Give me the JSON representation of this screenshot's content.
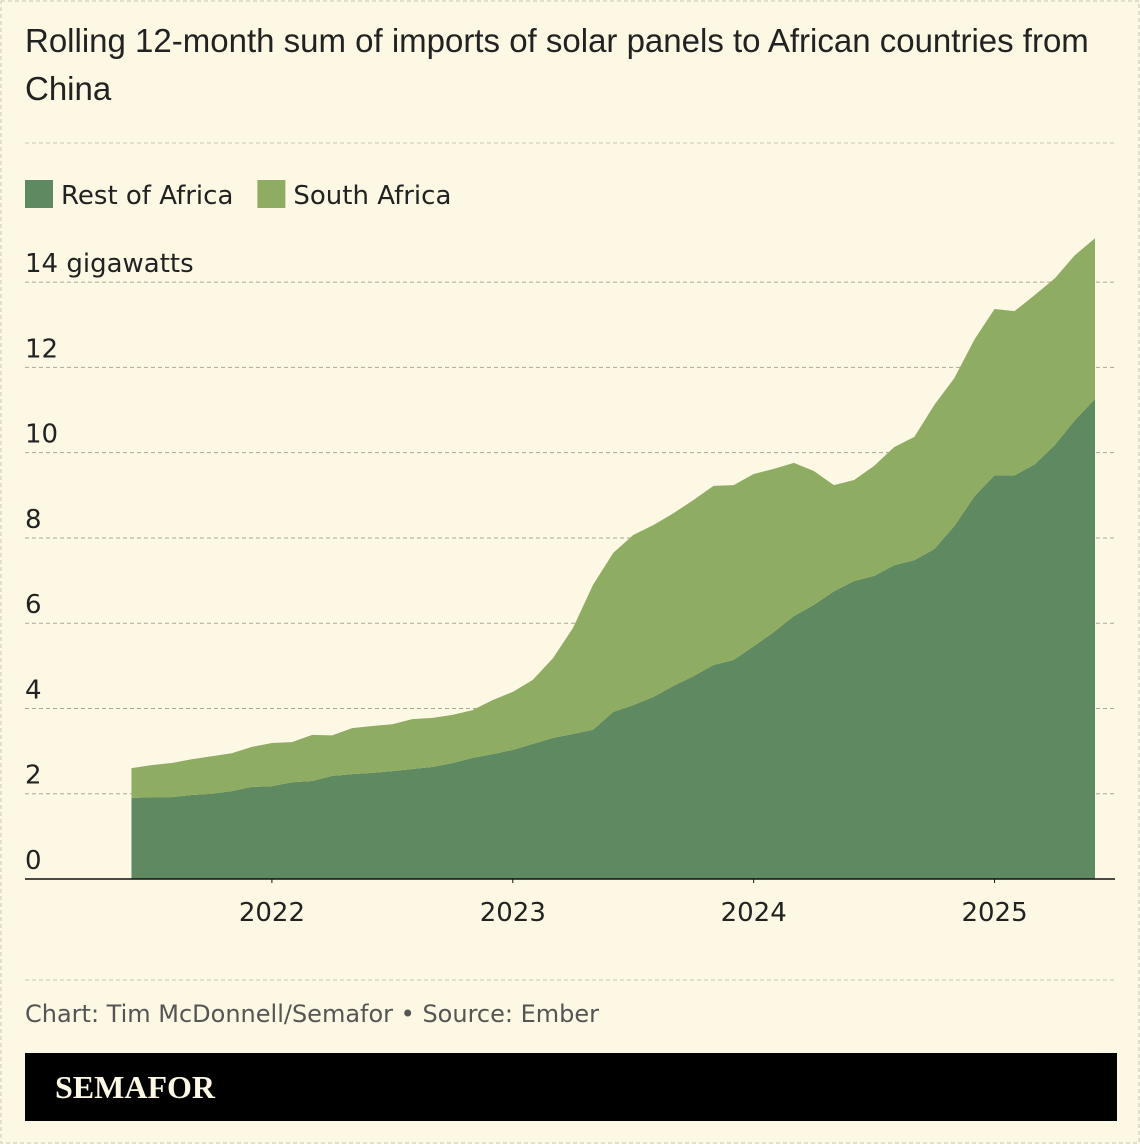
{
  "chart_data": {
    "type": "stacked-area",
    "title": "Rolling 12-month sum of imports of solar panels to African countries from China",
    "x": [
      2021.417,
      2021.5,
      2021.583,
      2021.667,
      2021.75,
      2021.833,
      2021.917,
      2022,
      2022.083,
      2022.167,
      2022.25,
      2022.333,
      2022.417,
      2022.5,
      2022.583,
      2022.667,
      2022.75,
      2022.833,
      2022.917,
      2023,
      2023.083,
      2023.167,
      2023.25,
      2023.333,
      2023.417,
      2023.5,
      2023.583,
      2023.667,
      2023.75,
      2023.833,
      2023.917,
      2024,
      2024.083,
      2024.167,
      2024.25,
      2024.333,
      2024.417,
      2024.5,
      2024.583,
      2024.667,
      2024.75,
      2024.833,
      2024.917,
      2025,
      2025.083,
      2025.167,
      2025.25,
      2025.333,
      2025.417
    ],
    "series": [
      {
        "name": "Rest of Africa",
        "color": "#5f8a61",
        "values": [
          1.9,
          1.92,
          1.92,
          1.97,
          2.0,
          2.06,
          2.16,
          2.18,
          2.27,
          2.3,
          2.42,
          2.46,
          2.49,
          2.53,
          2.58,
          2.63,
          2.72,
          2.84,
          2.93,
          3.03,
          3.17,
          3.31,
          3.4,
          3.5,
          3.92,
          4.08,
          4.27,
          4.53,
          4.76,
          5.02,
          5.14,
          5.46,
          5.79,
          6.17,
          6.43,
          6.75,
          6.99,
          7.11,
          7.36,
          7.48,
          7.74,
          8.28,
          8.98,
          9.47,
          9.47,
          9.73,
          10.18,
          10.76,
          11.26
        ]
      },
      {
        "name": "South Africa",
        "color": "#8fad62",
        "values": [
          0.7,
          0.75,
          0.8,
          0.84,
          0.88,
          0.89,
          0.94,
          1.01,
          0.94,
          1.08,
          0.95,
          1.08,
          1.1,
          1.1,
          1.17,
          1.15,
          1.13,
          1.12,
          1.27,
          1.36,
          1.5,
          1.87,
          2.49,
          3.4,
          3.73,
          3.99,
          4.03,
          4.05,
          4.13,
          4.2,
          4.1,
          4.04,
          3.83,
          3.59,
          3.14,
          2.49,
          2.37,
          2.58,
          2.77,
          2.89,
          3.38,
          3.47,
          3.68,
          3.9,
          3.85,
          3.97,
          3.91,
          3.87,
          3.77
        ]
      }
    ],
    "xlim": [
      2020.975,
      2025.5
    ],
    "xticks": [
      2022,
      2023,
      2024,
      2025
    ],
    "ylim": [
      0,
      15.2
    ],
    "yticks": [
      0,
      2,
      4,
      6,
      8,
      10,
      12,
      {
        "value": 14,
        "label": "14 gigawatts"
      }
    ],
    "grid": true,
    "legend": "top-left"
  },
  "footer": {
    "source": "Chart: Tim McDonnell/Semafor • Source: Ember",
    "brand": "SEMAFOR"
  }
}
